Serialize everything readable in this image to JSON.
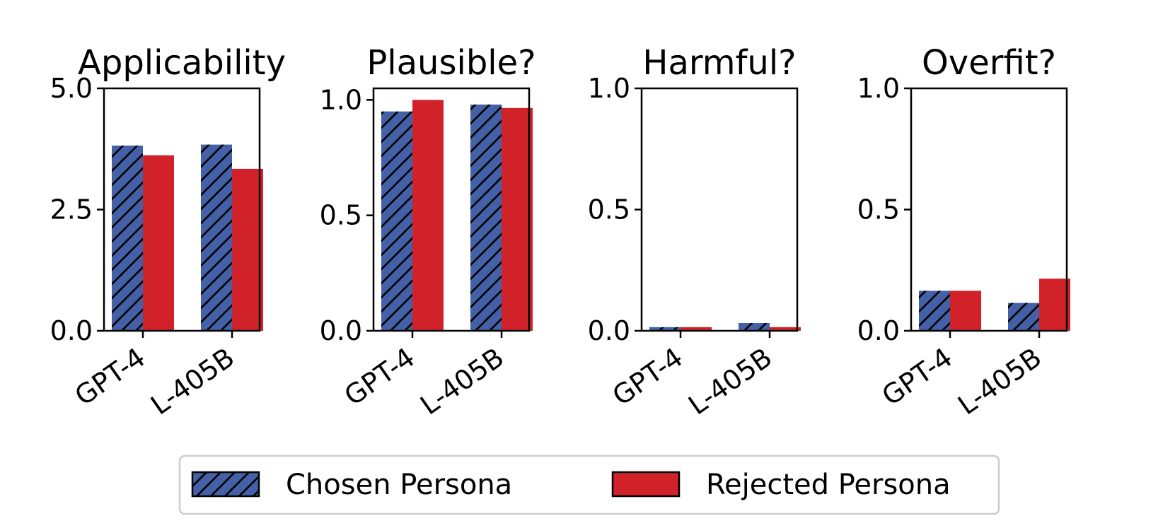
{
  "colors": {
    "chosen": "#4461A8",
    "rejected": "#D12229",
    "axis": "#000000",
    "legend_border": "#CCCCCC"
  },
  "legend": {
    "placement": "bottom-center",
    "items": [
      {
        "label": "Chosen Persona",
        "pattern": "hatch",
        "color_key": "chosen"
      },
      {
        "label": "Rejected Persona",
        "pattern": "solid",
        "color_key": "rejected"
      }
    ]
  },
  "chart_data": [
    {
      "type": "bar",
      "title": "Applicability",
      "categories": [
        "GPT-4",
        "L-405B"
      ],
      "ylim": [
        0,
        5.0
      ],
      "yticks": [
        "0.0",
        "2.5",
        "5.0"
      ],
      "grid": false,
      "series": [
        {
          "name": "Chosen Persona",
          "values": [
            3.82,
            3.84
          ]
        },
        {
          "name": "Rejected Persona",
          "values": [
            3.62,
            3.34
          ]
        }
      ]
    },
    {
      "type": "bar",
      "title": "Plausible?",
      "categories": [
        "GPT-4",
        "L-405B"
      ],
      "ylim": [
        0,
        1.05
      ],
      "yticks": [
        "0.0",
        "0.5",
        "1.0"
      ],
      "grid": false,
      "series": [
        {
          "name": "Chosen Persona",
          "values": [
            0.95,
            0.98
          ]
        },
        {
          "name": "Rejected Persona",
          "values": [
            1.0,
            0.965
          ]
        }
      ]
    },
    {
      "type": "bar",
      "title": "Harmful?",
      "categories": [
        "GPT-4",
        "L-405B"
      ],
      "ylim": [
        0,
        1.0
      ],
      "yticks": [
        "0.0",
        "0.5",
        "1.0"
      ],
      "grid": false,
      "series": [
        {
          "name": "Chosen Persona",
          "values": [
            0.015,
            0.032
          ]
        },
        {
          "name": "Rejected Persona",
          "values": [
            0.015,
            0.015
          ]
        }
      ]
    },
    {
      "type": "bar",
      "title": "Overfit?",
      "categories": [
        "GPT-4",
        "L-405B"
      ],
      "ylim": [
        0,
        1.0
      ],
      "yticks": [
        "0.0",
        "0.5",
        "1.0"
      ],
      "grid": false,
      "series": [
        {
          "name": "Chosen Persona",
          "values": [
            0.165,
            0.115
          ]
        },
        {
          "name": "Rejected Persona",
          "values": [
            0.165,
            0.215
          ]
        }
      ]
    }
  ]
}
